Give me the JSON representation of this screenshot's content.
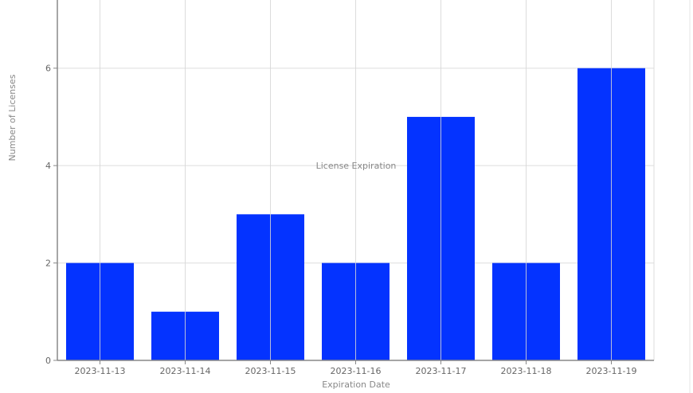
{
  "chart_data": {
    "type": "bar",
    "title": "License Expiration",
    "xlabel": "Expiration Date",
    "ylabel": "Number of Licenses",
    "categories": [
      "2023-11-13",
      "2023-11-14",
      "2023-11-15",
      "2023-11-16",
      "2023-11-17",
      "2023-11-18",
      "2023-11-19"
    ],
    "values": [
      2,
      1,
      3,
      2,
      5,
      2,
      6
    ],
    "yticks": [
      0,
      2,
      4,
      6
    ],
    "ylim": [
      0,
      7.4
    ],
    "grid": true,
    "bar_color": "#0433ff",
    "grid_color": "#dddddd"
  }
}
